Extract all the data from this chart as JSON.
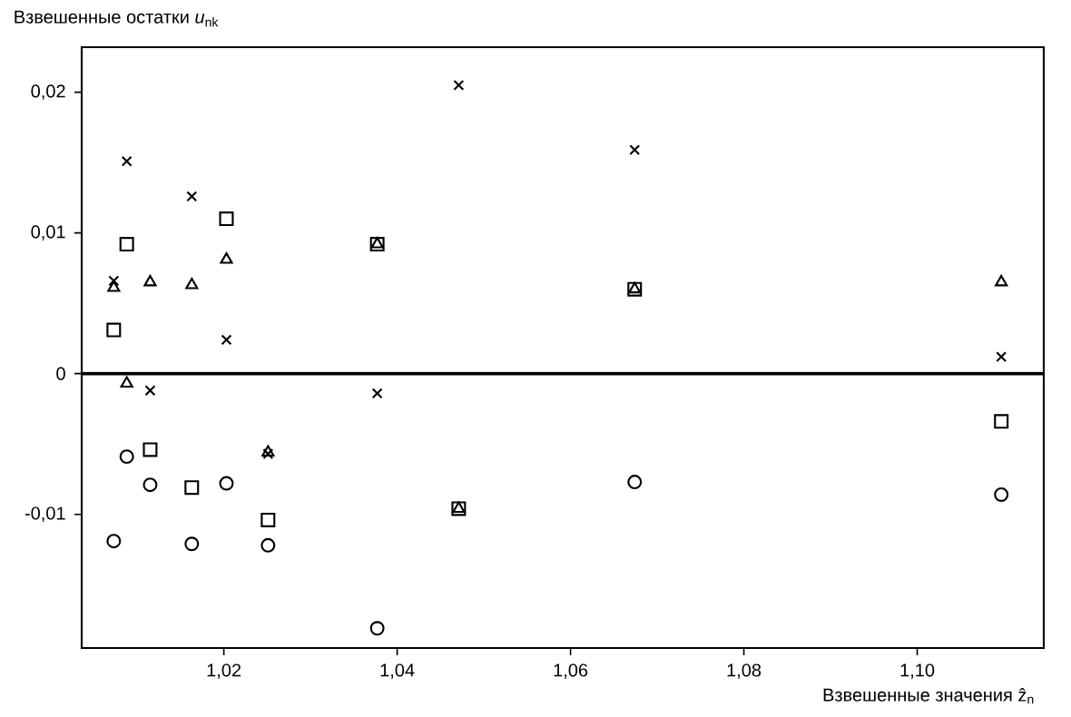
{
  "chart_data": {
    "type": "scatter",
    "xlabel": "Взвешенные значения ẑ$_{n}$",
    "ylabel": "Взвешенные остатки *u*$_{nk}$",
    "xlim": [
      1.0036,
      1.1146
    ],
    "ylim": [
      -0.0195,
      0.0232
    ],
    "xticks": [
      {
        "value": 1.02,
        "label": "1,02"
      },
      {
        "value": 1.04,
        "label": "1,04"
      },
      {
        "value": 1.06,
        "label": "1,06"
      },
      {
        "value": 1.08,
        "label": "1,08"
      },
      {
        "value": 1.1,
        "label": "1,10"
      }
    ],
    "yticks": [
      {
        "value": -0.01,
        "label": "-0,01"
      },
      {
        "value": 0,
        "label": "0"
      },
      {
        "value": 0.01,
        "label": "0,01"
      },
      {
        "value": 0.02,
        "label": "0,02"
      }
    ],
    "ref_lines": [
      {
        "axis": "y",
        "value": 0,
        "color": "#000000"
      }
    ],
    "x": [
      1.0073,
      1.0088,
      1.0115,
      1.0163,
      1.0203,
      1.0251,
      1.0377,
      1.0471,
      1.0674,
      1.1097
    ],
    "series": [
      {
        "color": "#000000",
        "marker": "cross",
        "values": [
          0.0066,
          0.0151,
          -0.0012,
          0.0126,
          0.0024,
          -0.0057,
          -0.0014,
          0.0205,
          0.0159,
          0.0012
        ]
      },
      {
        "color": "#000000",
        "marker": "square",
        "values": [
          0.0031,
          0.0092,
          -0.0054,
          -0.0081,
          0.011,
          -0.0104,
          0.0092,
          -0.0096,
          0.006,
          -0.0034
        ]
      },
      {
        "color": "#000000",
        "marker": "triangle",
        "values": [
          0.0061,
          -0.0007,
          0.0065,
          0.0063,
          0.0081,
          -0.0056,
          0.0092,
          -0.0096,
          0.006,
          0.0065
        ]
      },
      {
        "color": "#000000",
        "marker": "circle",
        "values": [
          -0.0119,
          -0.0059,
          -0.0079,
          -0.0121,
          -0.0078,
          -0.0122,
          -0.0181,
          null,
          -0.0077,
          -0.0086
        ]
      }
    ]
  }
}
